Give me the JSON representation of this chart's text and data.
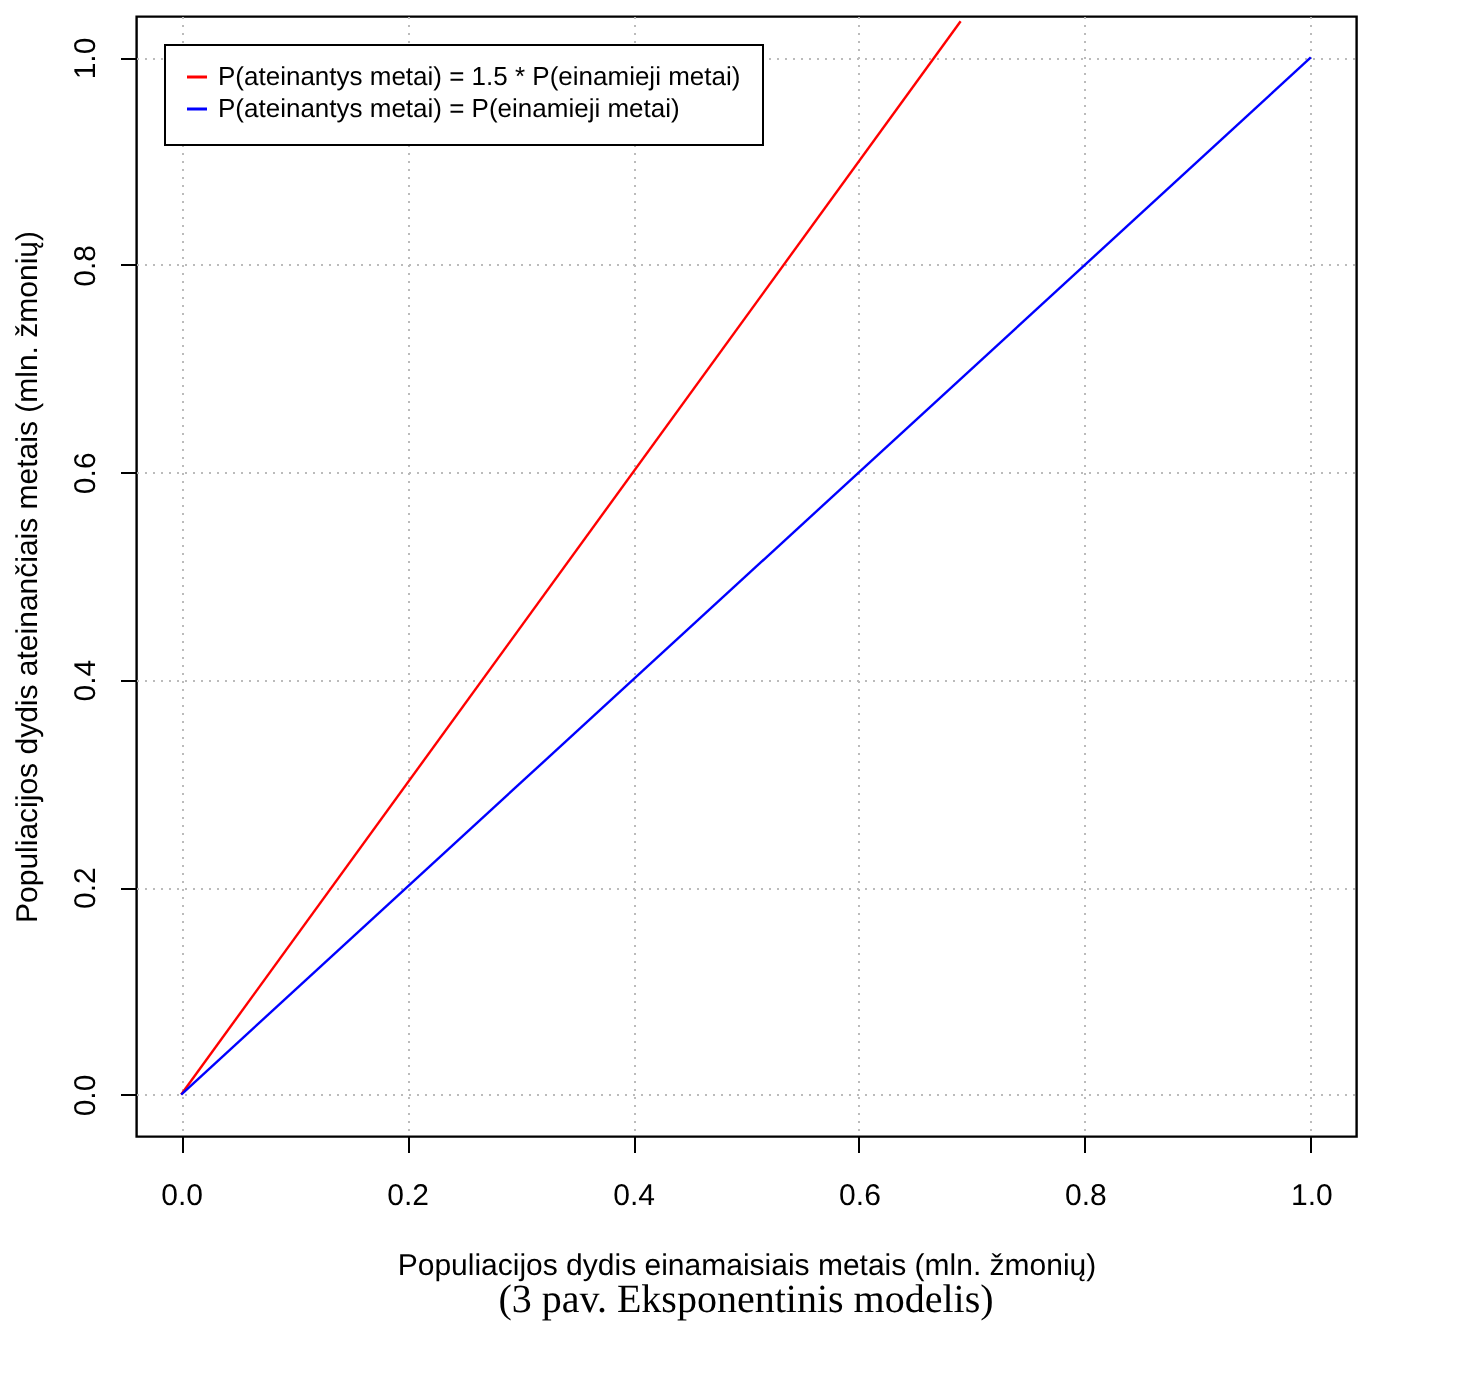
{
  "chart_data": {
    "type": "line",
    "xlabel": "Populiacijos dydis einamaisiais metais (mln. žmonių)",
    "ylabel": "Populiacijos dydis ateinančiais metais (mln. žmonių)",
    "series": [
      {
        "name": "P(ateinantys metai) = 1.5 * P(einamieji metai)",
        "color": "#ff0000",
        "x": [
          0,
          0.69
        ],
        "values": [
          0,
          1.035
        ]
      },
      {
        "name": "P(ateinantys metai) = P(einamieji metai)",
        "color": "#0000ff",
        "x": [
          0,
          1
        ],
        "values": [
          0,
          1
        ]
      }
    ],
    "xlim": [
      -0.04,
      1.04
    ],
    "ylim": [
      -0.04,
      1.04
    ],
    "xticks": [
      {
        "value": 0,
        "label": "0.0"
      },
      0.2,
      0.4,
      0.6,
      0.8,
      {
        "value": 1,
        "label": "1.0"
      }
    ],
    "yticks": [
      {
        "value": 0,
        "label": "0.0"
      },
      0.2,
      0.4,
      0.6,
      0.8,
      {
        "value": 1,
        "label": "1.0"
      }
    ],
    "grid": true,
    "legend": "top left",
    "line_style": "solid",
    "marker": "none",
    "annotations": [
      "(3 pav. Eksponentinis modelis)"
    ]
  }
}
